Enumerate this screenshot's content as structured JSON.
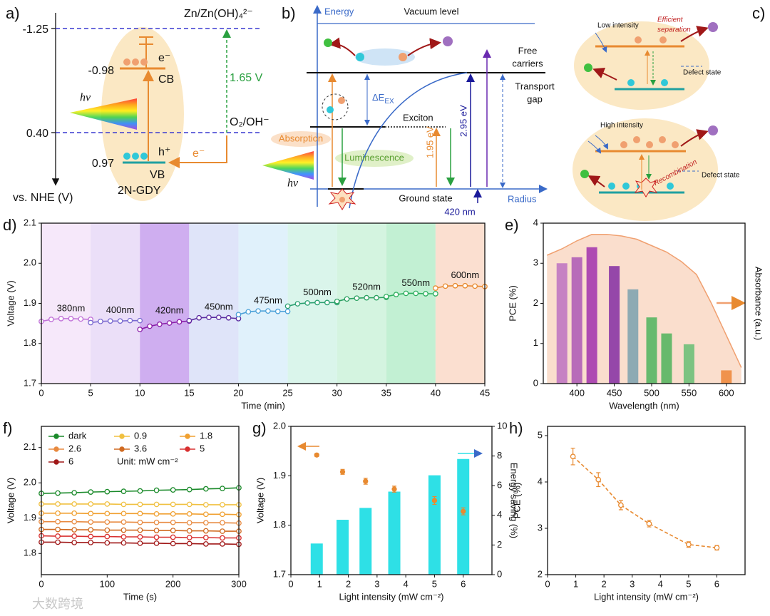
{
  "diagrams": {
    "a": {
      "panel_label": "a)",
      "levels": [
        "-1.25",
        "-0.98",
        "0.40",
        "0.97"
      ],
      "zn_couple": "Zn/Zn(OH)₄²⁻",
      "o2_couple": "O₂/OH⁻",
      "cb": "CB",
      "vb": "VB",
      "electrons": [
        "e⁻",
        "e⁻"
      ],
      "hole": "h⁺",
      "gap": "1.65 V",
      "photon": "hν",
      "material": "2N-GDY",
      "axis_label": "vs. NHE (V)"
    },
    "b": {
      "panel_label": "b)",
      "energy": "Energy",
      "vacuum": "Vacuum level",
      "free": [
        "Free",
        "carriers"
      ],
      "transport": [
        "Transport",
        "gap"
      ],
      "binding": {
        "main": "ΔE",
        "sub": "EX"
      },
      "exciton": "Exciton",
      "absorption": "Absorption",
      "luminescence": "Luminescence",
      "low_gap": "1.95 eV",
      "high_gap": "2.95 eV",
      "photon": "hν",
      "ground": "Ground state",
      "radius": "Radius",
      "wavelength": "420 nm"
    },
    "c": {
      "panel_label": "c)",
      "low": "Low intensity",
      "separation": [
        "Efficient",
        "separation"
      ],
      "defect": [
        "Defect state",
        "Defect state"
      ],
      "high": "High intensity",
      "recombination": "Recombination"
    },
    "watermark": "大数跨境"
  },
  "chart_data": [
    {
      "type": "line",
      "panel_label": "d)",
      "xlabel": "Time (min)",
      "ylabel": "Voltage (V)",
      "xlim": [
        0,
        45
      ],
      "xticks": [
        0,
        5,
        10,
        15,
        20,
        25,
        30,
        35,
        40,
        45
      ],
      "ylim": [
        1.7,
        2.1
      ],
      "yticks": [
        1.7,
        1.8,
        1.9,
        {
          "value": 2,
          "label": "2.0"
        },
        2.1
      ],
      "series_labels": "inline",
      "series": [
        {
          "name": "380nm",
          "color": "#c070d8",
          "band_color": "#f6e8fa",
          "x": [
            0,
            1,
            2,
            3,
            4,
            5
          ],
          "values": [
            1.855,
            1.86,
            1.862,
            1.862,
            1.861,
            1.86
          ]
        },
        {
          "name": "400nm",
          "color": "#7a6ad0",
          "band_color": "#ebdff8",
          "x": [
            5,
            6,
            7,
            8,
            9,
            10
          ],
          "values": [
            1.852,
            1.855,
            1.856,
            1.856,
            1.857,
            1.857
          ]
        },
        {
          "name": "420nm",
          "color": "#8a1ea8",
          "band_color": "#cfaef0",
          "x": [
            10,
            11,
            12,
            13,
            14,
            15
          ],
          "values": [
            1.835,
            1.843,
            1.848,
            1.851,
            1.854,
            1.856
          ]
        },
        {
          "name": "450nm",
          "color": "#5a2aa0",
          "band_color": "#dfe4f9",
          "x": [
            15,
            16,
            17,
            18,
            19,
            20
          ],
          "values": [
            1.857,
            1.864,
            1.865,
            1.865,
            1.864,
            1.862
          ]
        },
        {
          "name": "475nm",
          "color": "#4aa0d8",
          "band_color": "#e0f1fb",
          "x": [
            20,
            21,
            22,
            23,
            24,
            25
          ],
          "values": [
            1.872,
            1.879,
            1.881,
            1.881,
            1.88,
            1.88
          ]
        },
        {
          "name": "500nm",
          "color": "#2aa070",
          "band_color": "#daf5eb",
          "x": [
            25,
            26,
            27,
            28,
            29,
            30
          ],
          "values": [
            1.893,
            1.899,
            1.901,
            1.902,
            1.902,
            1.902
          ]
        },
        {
          "name": "520nm",
          "color": "#2aa060",
          "band_color": "#d4f4e0",
          "x": [
            30,
            31,
            32,
            33,
            34,
            35
          ],
          "values": [
            1.905,
            1.911,
            1.913,
            1.914,
            1.914,
            1.915
          ]
        },
        {
          "name": "550nm",
          "color": "#30b060",
          "band_color": "#c2f0d3",
          "x": [
            35,
            36,
            37,
            38,
            39,
            40
          ],
          "values": [
            1.917,
            1.922,
            1.925,
            1.925,
            1.924,
            1.924
          ]
        },
        {
          "name": "600nm",
          "color": "#e88a30",
          "band_color": "#fbdfd0",
          "x": [
            40,
            41,
            42,
            43,
            44,
            45
          ],
          "values": [
            1.938,
            1.943,
            1.944,
            1.944,
            1.943,
            1.942
          ]
        }
      ]
    },
    {
      "type": "bar",
      "panel_label": "e)",
      "xlabel": "Wavelength (nm)",
      "ylabel": "PCE (%)",
      "y2label": "Absorbance (a.u.)",
      "xlim": [
        355,
        625
      ],
      "xticks": [
        400,
        450,
        500,
        550,
        600
      ],
      "ylim": [
        0,
        4
      ],
      "yticks": [
        0,
        1,
        2,
        3,
        4
      ],
      "y2lim": [
        0,
        1
      ],
      "series": [
        {
          "mark": "bar",
          "x": [
            380,
            400,
            420,
            450,
            475,
            500,
            520,
            550,
            600
          ],
          "values": [
            3.0,
            3.15,
            3.4,
            2.93,
            2.35,
            1.65,
            1.25,
            0.98,
            0.33
          ],
          "colors": [
            "#b070f0",
            "#9a50e0",
            "#8a1ed6",
            "#6418c8",
            "#5ab0d8",
            "#1ec86e",
            "#1fc66a",
            "#3ed68a",
            "#f08a3a"
          ]
        },
        {
          "mark": "area",
          "axis": "y2",
          "color": "#f0a070",
          "x": [
            360,
            380,
            400,
            420,
            440,
            460,
            480,
            500,
            520,
            540,
            560,
            580,
            600,
            620
          ],
          "values": [
            0.8,
            0.84,
            0.89,
            0.93,
            0.93,
            0.92,
            0.9,
            0.86,
            0.82,
            0.76,
            0.68,
            0.5,
            0.3,
            0.1
          ]
        }
      ]
    },
    {
      "type": "line",
      "panel_label": "f)",
      "xlabel": "Time (s)",
      "ylabel": "Voltage (V)",
      "xlim": [
        0,
        300
      ],
      "xticks": [
        0,
        100,
        200,
        300
      ],
      "ylim": [
        1.74,
        2.16
      ],
      "yticks": [
        1.8,
        1.9,
        {
          "value": 2,
          "label": "2.0"
        },
        2.1
      ],
      "legend": "top-left",
      "legend_note": "Unit: mW cm⁻²",
      "x": [
        0,
        25,
        50,
        75,
        100,
        125,
        150,
        175,
        200,
        225,
        250,
        275,
        300
      ],
      "series": [
        {
          "name": "dark",
          "color": "#1a8a2a",
          "values": [
            1.97,
            1.971,
            1.972,
            1.974,
            1.975,
            1.976,
            1.977,
            1.979,
            1.98,
            1.981,
            1.983,
            1.984,
            1.986
          ]
        },
        {
          "name": "0.9",
          "color": "#f0c040",
          "values": [
            1.94,
            1.94,
            1.94,
            1.94,
            1.94,
            1.939,
            1.939,
            1.939,
            1.939,
            1.939,
            1.938,
            1.938,
            1.938
          ]
        },
        {
          "name": "1.8",
          "color": "#f0a030",
          "values": [
            1.914,
            1.914,
            1.914,
            1.913,
            1.913,
            1.913,
            1.913,
            1.912,
            1.912,
            1.912,
            1.911,
            1.911,
            1.91
          ]
        },
        {
          "name": "2.6",
          "color": "#e88a40",
          "values": [
            1.89,
            1.89,
            1.89,
            1.889,
            1.889,
            1.889,
            1.888,
            1.888,
            1.888,
            1.887,
            1.887,
            1.887,
            1.886
          ]
        },
        {
          "name": "3.6",
          "color": "#d06a20",
          "values": [
            1.868,
            1.868,
            1.867,
            1.867,
            1.866,
            1.866,
            1.866,
            1.865,
            1.865,
            1.864,
            1.864,
            1.863,
            1.863
          ]
        },
        {
          "name": "5",
          "color": "#d83030",
          "values": [
            1.85,
            1.849,
            1.849,
            1.848,
            1.848,
            1.847,
            1.847,
            1.846,
            1.846,
            1.845,
            1.845,
            1.844,
            1.844
          ]
        },
        {
          "name": "6",
          "color": "#a01818",
          "values": [
            1.832,
            1.832,
            1.831,
            1.831,
            1.83,
            1.83,
            1.829,
            1.829,
            1.828,
            1.828,
            1.827,
            1.827,
            1.826
          ]
        }
      ]
    },
    {
      "type": "combo",
      "panel_label": "g)",
      "xlabel": "Light intensity (mW cm⁻²)",
      "ylabel": "Voltage (V)",
      "y2label": "Energy saving (%)",
      "xlim": [
        0,
        7
      ],
      "xticks": [
        0,
        1,
        2,
        3,
        4,
        5,
        6
      ],
      "ylim": [
        1.7,
        2.0
      ],
      "yticks": [
        1.7,
        1.8,
        1.9,
        {
          "value": 2,
          "label": "2.0"
        }
      ],
      "y2lim": [
        0,
        10
      ],
      "y2ticks": [
        0,
        2,
        4,
        6,
        8,
        10
      ],
      "axis_arrows": true,
      "x": [
        0.9,
        1.8,
        2.6,
        3.6,
        5,
        6
      ],
      "series": [
        {
          "mark": "bar",
          "axis": "y2",
          "color": "#2ee0e6",
          "values": [
            2.1,
            3.7,
            4.5,
            5.6,
            6.7,
            7.8
          ]
        },
        {
          "mark": "point",
          "color": "#e88a30",
          "values": [
            1.942,
            1.908,
            1.889,
            1.873,
            1.85,
            1.828
          ],
          "error": [
            0.003,
            0.005,
            0.006,
            0.006,
            0.008,
            0.007
          ]
        }
      ]
    },
    {
      "type": "line",
      "panel_label": "h)",
      "xlabel": "Light intensity (mW cm⁻²)",
      "ylabel": "PCE (%)",
      "xlim": [
        0,
        7
      ],
      "xticks": [
        0,
        1,
        2,
        3,
        4,
        5,
        6
      ],
      "ylim": [
        2,
        5.2
      ],
      "yticks": [
        2,
        3,
        4,
        5
      ],
      "line_style": "dashed",
      "x": [
        0.9,
        1.8,
        2.6,
        3.6,
        5,
        6
      ],
      "series": [
        {
          "color": "#e88a30",
          "values": [
            4.55,
            4.05,
            3.5,
            3.1,
            2.65,
            2.58
          ],
          "error": [
            0.18,
            0.15,
            0.1,
            0.07,
            0.06,
            0.05
          ]
        }
      ]
    }
  ]
}
